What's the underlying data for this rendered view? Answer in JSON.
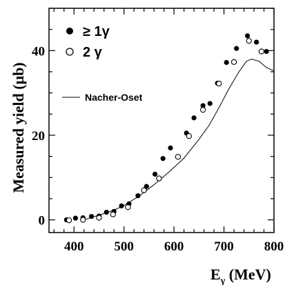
{
  "chart_data": {
    "type": "scatter",
    "xlabel": {
      "main": "E",
      "sub": "γ",
      "unit": " (MeV)"
    },
    "ylabel": "Measured yield (μb)",
    "xlim": [
      350,
      800
    ],
    "ylim": [
      -3,
      50
    ],
    "x_ticks": [
      400,
      500,
      600,
      700,
      800
    ],
    "y_ticks": [
      0,
      20,
      40
    ],
    "series": [
      {
        "name": "≥ 1γ",
        "marker": "filled-circle",
        "points": [
          [
            385,
            0.0
          ],
          [
            403,
            0.4
          ],
          [
            418,
            0.5
          ],
          [
            435,
            0.8
          ],
          [
            450,
            0.9
          ],
          [
            465,
            1.8
          ],
          [
            480,
            2.0
          ],
          [
            495,
            3.3
          ],
          [
            510,
            3.8
          ],
          [
            528,
            5.7
          ],
          [
            545,
            7.9
          ],
          [
            562,
            10.8
          ],
          [
            578,
            14.5
          ],
          [
            593,
            17.0
          ],
          [
            625,
            20.5
          ],
          [
            640,
            24.1
          ],
          [
            658,
            27.0
          ],
          [
            672,
            27.5
          ],
          [
            687,
            32.3
          ],
          [
            705,
            37.2
          ],
          [
            725,
            40.5
          ],
          [
            747,
            43.5
          ],
          [
            765,
            42.0
          ],
          [
            785,
            39.8
          ]
        ]
      },
      {
        "name": "2 γ",
        "marker": "open-circle",
        "points": [
          [
            390,
            -0.1
          ],
          [
            418,
            0.0
          ],
          [
            450,
            0.5
          ],
          [
            478,
            1.3
          ],
          [
            508,
            3.0
          ],
          [
            540,
            7.0
          ],
          [
            570,
            9.8
          ],
          [
            608,
            14.9
          ],
          [
            630,
            19.8
          ],
          [
            658,
            26.0
          ],
          [
            690,
            32.2
          ],
          [
            720,
            37.3
          ],
          [
            750,
            42.3
          ],
          [
            775,
            39.8
          ]
        ]
      },
      {
        "name": "Nacher-Oset",
        "marker": "line",
        "points": [
          [
            420,
            0.0
          ],
          [
            450,
            1.1
          ],
          [
            480,
            2.3
          ],
          [
            500,
            3.4
          ],
          [
            530,
            5.6
          ],
          [
            560,
            8.3
          ],
          [
            590,
            11.3
          ],
          [
            620,
            14.6
          ],
          [
            650,
            19.0
          ],
          [
            670,
            22.3
          ],
          [
            690,
            26.5
          ],
          [
            710,
            31.0
          ],
          [
            730,
            35.0
          ],
          [
            745,
            37.5
          ],
          [
            755,
            38.0
          ],
          [
            770,
            37.5
          ],
          [
            785,
            36.0
          ],
          [
            800,
            35.2
          ]
        ]
      }
    ],
    "legend": [
      {
        "label": "≥ 1γ",
        "marker": "filled-circle"
      },
      {
        "label": "2 γ",
        "marker": "open-circle"
      },
      {
        "label": "Nacher-Oset",
        "marker": "line"
      }
    ],
    "legend_position": "top-left",
    "grid": false
  }
}
